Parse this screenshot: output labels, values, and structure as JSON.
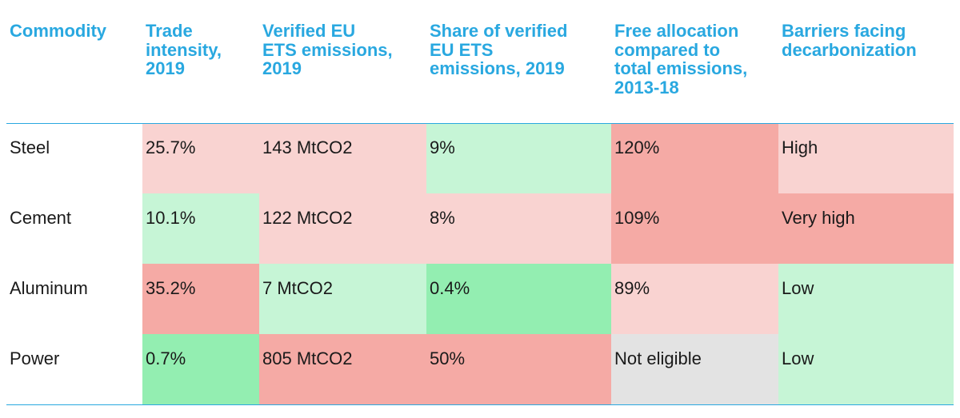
{
  "chart_data": {
    "type": "table",
    "columns": [
      "Commodity",
      "Trade intensity, 2019",
      "Verified EU ETS emissions, 2019",
      "Share of verified EU ETS emissions, 2019",
      "Free allocation compared to total emissions, 2013-18",
      "Barriers facing decarbonization"
    ],
    "header_lines": [
      "Commodity",
      "Trade\nintensity,\n2019",
      "Verified EU\nETS emissions,\n2019",
      "Share of verified\nEU ETS\nemissions, 2019",
      "Free allocation\ncompared to\ntotal emissions,\n2013-18",
      "Barriers facing\ndecarbonization"
    ],
    "rows": [
      [
        "Steel",
        "25.7%",
        "143 MtCO2",
        "9%",
        "120%",
        "High"
      ],
      [
        "Cement",
        "10.1%",
        "122 MtCO2",
        "8%",
        "109%",
        "Very high"
      ],
      [
        "Aluminum",
        "35.2%",
        "7 MtCO2",
        "0.4%",
        "89%",
        "Low"
      ],
      [
        "Power",
        "0.7%",
        "805 MtCO2",
        "50%",
        "Not eligible",
        "Low"
      ]
    ],
    "cell_colors": [
      [
        "#ffffff",
        "#f9d3d1",
        "#f9d3d1",
        "#c6f5d6",
        "#f5aaa5",
        "#f9d3d1"
      ],
      [
        "#ffffff",
        "#c6f5d6",
        "#f9d3d1",
        "#f9d3d1",
        "#f5aaa5",
        "#f5aaa5"
      ],
      [
        "#ffffff",
        "#f5aaa5",
        "#c6f5d6",
        "#93eeb1",
        "#f9d3d1",
        "#c6f5d6"
      ],
      [
        "#ffffff",
        "#93eeb1",
        "#f5aaa5",
        "#f5aaa5",
        "#e3e3e3",
        "#c6f5d6"
      ]
    ],
    "colors": {
      "header_text": "#29a8e0",
      "rule": "#29a8e0",
      "body_text": "#1a1a1a"
    }
  }
}
